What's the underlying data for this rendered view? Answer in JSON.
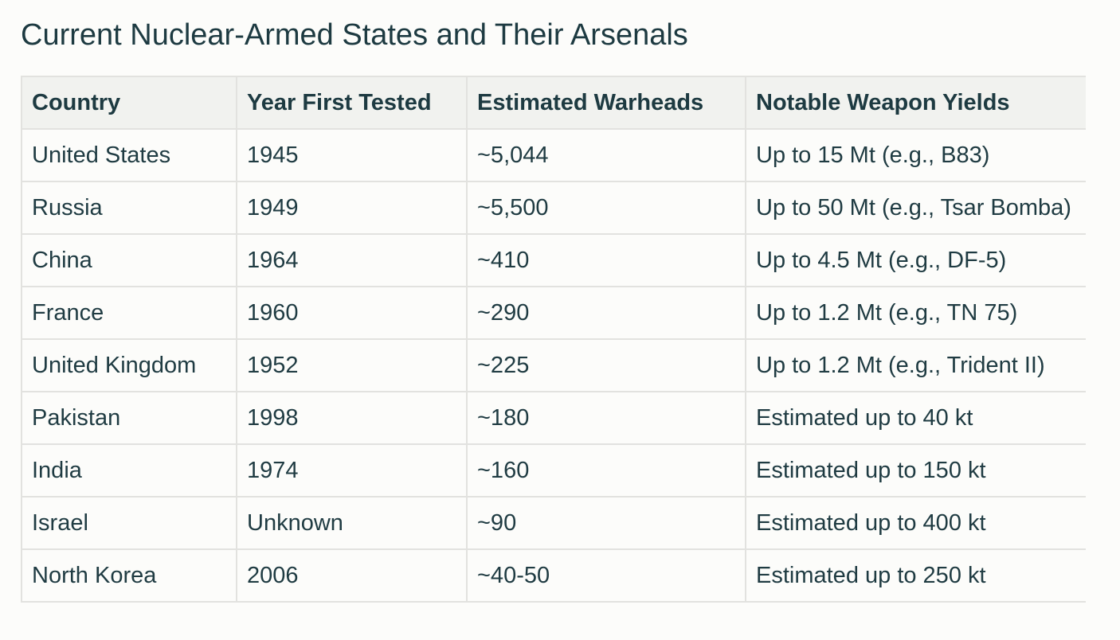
{
  "page": {
    "title": "Current Nuclear-Armed States and Their Arsenals"
  },
  "table": {
    "headers": [
      "Country",
      "Year First Tested",
      "Estimated Warheads",
      "Notable Weapon Yields"
    ],
    "rows": [
      {
        "country": "United States",
        "year": "1945",
        "warheads": "~5,044",
        "yield": "Up to 15 Mt (e.g., B83)"
      },
      {
        "country": "Russia",
        "year": "1949",
        "warheads": "~5,500",
        "yield": "Up to 50 Mt (e.g., Tsar Bomba)"
      },
      {
        "country": "China",
        "year": "1964",
        "warheads": "~410",
        "yield": "Up to 4.5 Mt (e.g., DF-5)"
      },
      {
        "country": "France",
        "year": "1960",
        "warheads": "~290",
        "yield": "Up to 1.2 Mt (e.g., TN 75)"
      },
      {
        "country": "United Kingdom",
        "year": "1952",
        "warheads": "~225",
        "yield": "Up to 1.2 Mt (e.g., Trident II)"
      },
      {
        "country": "Pakistan",
        "year": "1998",
        "warheads": "~180",
        "yield": "Estimated up to 40 kt"
      },
      {
        "country": "India",
        "year": "1974",
        "warheads": "~160",
        "yield": "Estimated up to 150 kt"
      },
      {
        "country": "Israel",
        "year": "Unknown",
        "warheads": "~90",
        "yield": "Estimated up to 400 kt"
      },
      {
        "country": "North Korea",
        "year": "2006",
        "warheads": "~40-50",
        "yield": "Estimated up to 250 kt"
      }
    ]
  },
  "colors": {
    "text": "#1f3b42",
    "header_background": "#f1f2ef",
    "border": "#e2e2df",
    "background": "#fcfcfa"
  }
}
